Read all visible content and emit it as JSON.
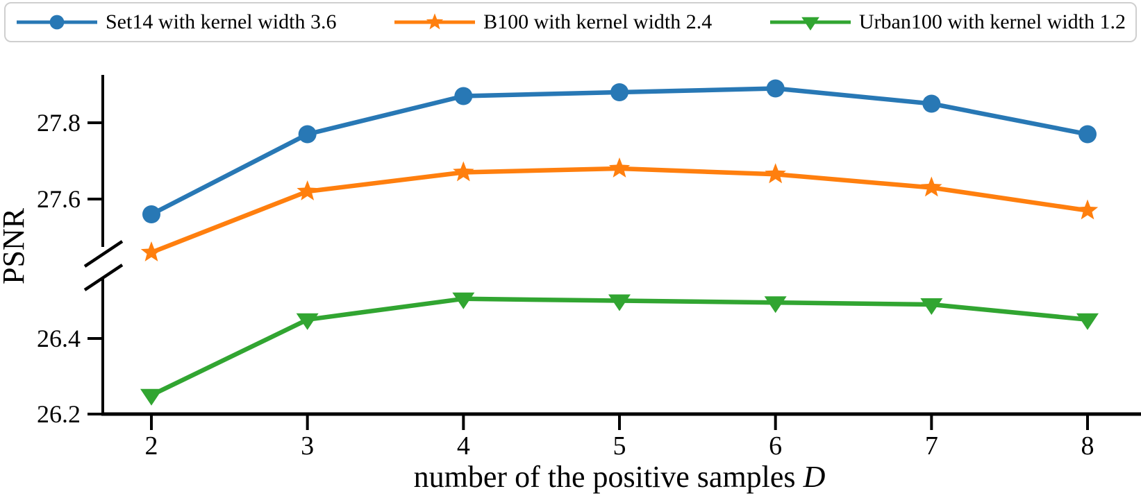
{
  "figure": {
    "background": "#ffffff",
    "axis_color": "#000000",
    "text_color": "#000000"
  },
  "legend": {
    "position": "top",
    "border_color": "#cfcfcf",
    "background": "#ffffff"
  },
  "chart_data": {
    "type": "line",
    "x": [
      2,
      3,
      4,
      5,
      6,
      7,
      8
    ],
    "x_tick_labels": [
      "2",
      "3",
      "4",
      "5",
      "6",
      "7",
      "8"
    ],
    "xlabel": "number of the positive samples D",
    "xlabel_prefix": "number of the positive samples ",
    "xlabel_variable": "D",
    "ylabel": "PSNR",
    "y_axis_break": true,
    "grid": false,
    "legend_position": "top",
    "y_ticks_upper": [
      {
        "value": 27.8,
        "label": "27.8"
      },
      {
        "value": 27.6,
        "label": "27.6"
      }
    ],
    "y_ticks_lower": [
      {
        "value": 26.4,
        "label": "26.4"
      },
      {
        "value": 26.2,
        "label": "26.2"
      }
    ],
    "ylim_upper": [
      27.44,
      27.96
    ],
    "ylim_lower": [
      26.19,
      26.57
    ],
    "xlim": [
      1.7,
      8.3
    ],
    "series": [
      {
        "name": "Set14 with kernel width 3.6",
        "color": "#2878b5",
        "marker": "circle",
        "values": [
          27.56,
          27.77,
          27.87,
          27.88,
          27.89,
          27.85,
          27.77
        ]
      },
      {
        "name": "B100 with kernel width 2.4",
        "color": "#ff7f0e",
        "marker": "star",
        "values": [
          27.46,
          27.62,
          27.67,
          27.68,
          27.665,
          27.63,
          27.57
        ]
      },
      {
        "name": "Urban100 with kernel width 1.2",
        "color": "#31a531",
        "marker": "triangle-down",
        "values": [
          26.25,
          26.45,
          26.505,
          26.5,
          26.495,
          26.49,
          26.45
        ]
      }
    ]
  }
}
